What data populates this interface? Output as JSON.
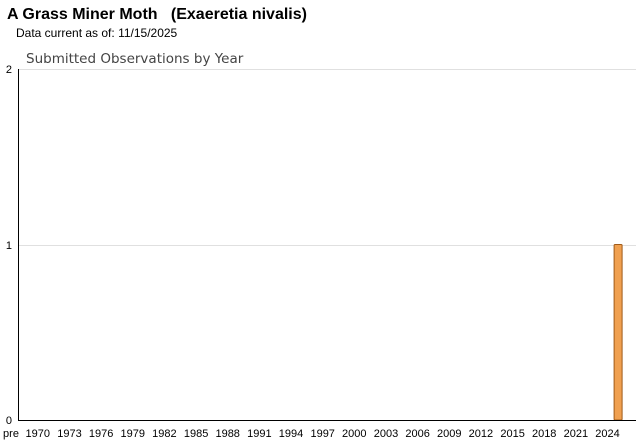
{
  "header": {
    "common_name": "A Grass Miner Moth",
    "scientific_name": "(Exaeretia nivalis)",
    "data_current_label": "Data current as of:",
    "data_current_date": "11/15/2025"
  },
  "chart_data": {
    "type": "bar",
    "title": "Submitted Observations by Year",
    "xlabel": "",
    "ylabel": "",
    "ylim": [
      0,
      2
    ],
    "y_ticks": [
      0,
      1,
      2
    ],
    "grid": true,
    "categories": [
      "pre",
      "1970",
      "1971",
      "1972",
      "1973",
      "1974",
      "1975",
      "1976",
      "1977",
      "1978",
      "1979",
      "1980",
      "1981",
      "1982",
      "1983",
      "1984",
      "1985",
      "1986",
      "1987",
      "1988",
      "1989",
      "1990",
      "1991",
      "1992",
      "1993",
      "1994",
      "1995",
      "1996",
      "1997",
      "1998",
      "1999",
      "2000",
      "2001",
      "2002",
      "2003",
      "2004",
      "2005",
      "2006",
      "2007",
      "2008",
      "2009",
      "2010",
      "2011",
      "2012",
      "2013",
      "2014",
      "2015",
      "2016",
      "2017",
      "2018",
      "2019",
      "2020",
      "2021",
      "2022",
      "2023",
      "2024",
      "2025"
    ],
    "x_tick_labels": [
      "pre",
      "1970",
      "1973",
      "1976",
      "1979",
      "1982",
      "1985",
      "1988",
      "1991",
      "1994",
      "1997",
      "2000",
      "2003",
      "2006",
      "2009",
      "2012",
      "2015",
      "2018",
      "2021",
      "2024"
    ],
    "values": [
      0,
      0,
      0,
      0,
      0,
      0,
      0,
      0,
      0,
      0,
      0,
      0,
      0,
      0,
      0,
      0,
      0,
      0,
      0,
      0,
      0,
      0,
      0,
      0,
      0,
      0,
      0,
      0,
      0,
      0,
      0,
      0,
      0,
      0,
      0,
      0,
      0,
      0,
      0,
      0,
      0,
      0,
      0,
      0,
      0,
      0,
      0,
      0,
      0,
      0,
      0,
      0,
      0,
      0,
      0,
      0,
      1
    ],
    "bar_color": "#f0a050",
    "bar_edge_color": "#a05a18",
    "axis_color": "#000000",
    "grid_color": "#e0e0e0"
  }
}
